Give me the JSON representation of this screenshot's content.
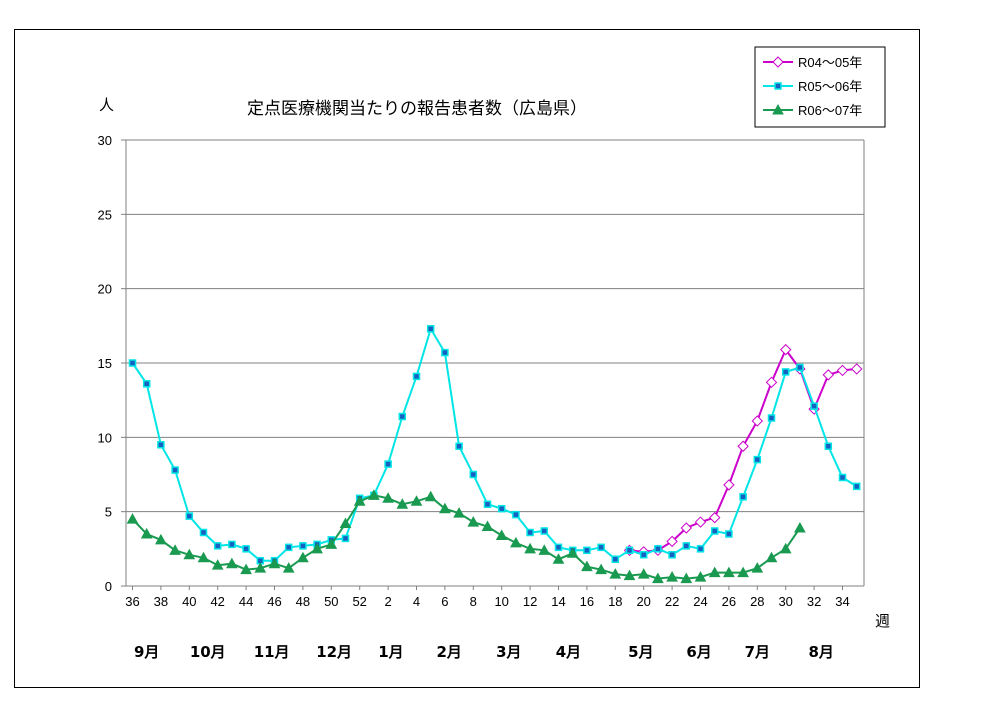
{
  "chart_data": {
    "type": "line",
    "title": "定点医療機関当たりの報告患者数（広島県）",
    "ylabel": "人",
    "xlabel": "週",
    "ylim": [
      0,
      30
    ],
    "yticks": [
      0,
      5,
      10,
      15,
      20,
      25,
      30
    ],
    "grid": true,
    "legend_position": "top-right",
    "x_tick_labels": [
      "36",
      "38",
      "40",
      "42",
      "44",
      "46",
      "48",
      "50",
      "52",
      "2",
      "4",
      "6",
      "8",
      "10",
      "12",
      "14",
      "16",
      "18",
      "20",
      "22",
      "24",
      "26",
      "28",
      "30",
      "32",
      "34"
    ],
    "months": [
      {
        "label": "9月",
        "week_index": 1
      },
      {
        "label": "10月",
        "week_index": 5.3
      },
      {
        "label": "11月",
        "week_index": 9.8
      },
      {
        "label": "12月",
        "week_index": 14.2
      },
      {
        "label": "1月",
        "week_index": 18.2
      },
      {
        "label": "2月",
        "week_index": 22.3
      },
      {
        "label": "3月",
        "week_index": 26.5
      },
      {
        "label": "4月",
        "week_index": 30.7
      },
      {
        "label": "5月",
        "week_index": 35.8
      },
      {
        "label": "6月",
        "week_index": 39.9
      },
      {
        "label": "7月",
        "week_index": 44
      },
      {
        "label": "8月",
        "week_index": 48.5
      }
    ],
    "series": [
      {
        "name": "R04～05年",
        "color": "#cc00cc",
        "marker": "diamond",
        "start_index": 35,
        "values": [
          2.4,
          2.3,
          2.4,
          3.0,
          3.9,
          4.3,
          4.6,
          6.8,
          9.4,
          11.1,
          13.7,
          15.9,
          14.6,
          11.9,
          14.2,
          14.5,
          14.6
        ]
      },
      {
        "name": "R05～06年",
        "color": "#00e5e5",
        "marker": "square",
        "start_index": 0,
        "values": [
          15.0,
          13.6,
          9.5,
          7.8,
          4.7,
          3.6,
          2.7,
          2.8,
          2.5,
          1.7,
          1.7,
          2.6,
          2.7,
          2.8,
          3.1,
          3.2,
          5.9,
          6.1,
          8.2,
          11.4,
          14.1,
          17.3,
          15.7,
          9.4,
          7.5,
          5.5,
          5.2,
          4.8,
          3.6,
          3.7,
          2.6,
          2.4,
          2.4,
          2.6,
          1.8,
          2.4,
          2.1,
          2.5,
          2.1,
          2.7,
          2.5,
          3.7,
          3.5,
          6.0,
          8.5,
          11.3,
          14.4,
          14.7,
          12.1,
          9.4,
          7.3,
          6.7
        ]
      },
      {
        "name": "R06～07年",
        "color": "#1a9a50",
        "marker": "triangle",
        "start_index": 0,
        "values": [
          4.5,
          3.5,
          3.1,
          2.4,
          2.1,
          1.9,
          1.4,
          1.5,
          1.1,
          1.2,
          1.5,
          1.2,
          1.9,
          2.5,
          2.8,
          4.2,
          5.7,
          6.1,
          5.9,
          5.5,
          5.7,
          6.0,
          5.2,
          4.9,
          4.3,
          4.0,
          3.4,
          2.9,
          2.5,
          2.4,
          1.8,
          2.2,
          1.3,
          1.1,
          0.8,
          0.7,
          0.8,
          0.5,
          0.6,
          0.5,
          0.6,
          0.9,
          0.9,
          0.9,
          1.2,
          1.9,
          2.5,
          3.9
        ]
      }
    ]
  }
}
